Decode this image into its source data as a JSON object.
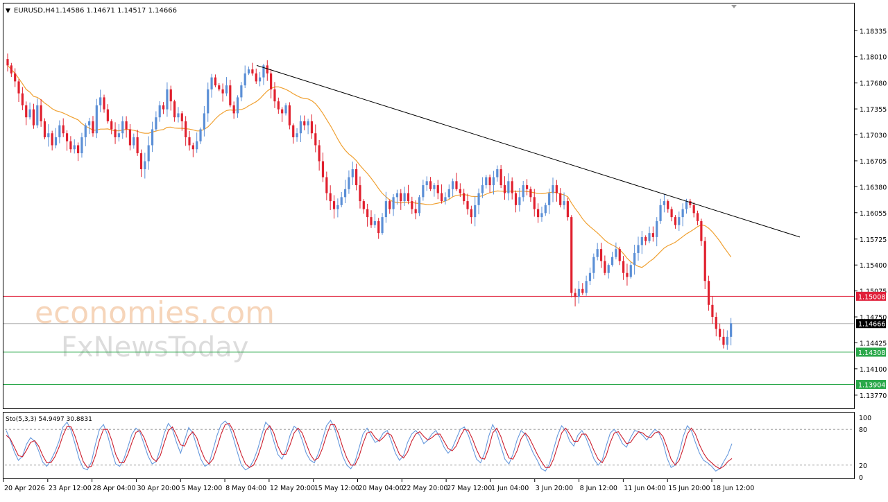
{
  "header": {
    "symbol_label": "EURUSD,H4",
    "ohlc_label": "1.14586 1.14671 1.14517 1.14666"
  },
  "watermarks": {
    "line1": "economies.com",
    "line2": "FxNewsToday"
  },
  "colors": {
    "bull": "#5b8fd6",
    "bear": "#e0202e",
    "ma": "#f0a030",
    "trendline": "#000000",
    "resistance": "#e0203a",
    "support": "#2aa84a",
    "current_price": "#b0b0b0",
    "stoch_main": "#6699dd",
    "stoch_signal": "#cc1f2e"
  },
  "chart_data": [
    {
      "type": "candlestick",
      "symbol": "EURUSD",
      "timeframe": "H4",
      "y_axis_ticks": [
        "1.18335",
        "1.18010",
        "1.17680",
        "1.17355",
        "1.17030",
        "1.16705",
        "1.16380",
        "1.16055",
        "1.15725",
        "1.15400",
        "1.15075",
        "1.14750",
        "1.14425",
        "1.14100",
        "1.13770"
      ],
      "ylim": [
        1.1363,
        1.1865
      ],
      "x_axis_labels": [
        "20 Apr 2026",
        "23 Apr 12:00",
        "28 Apr 04:00",
        "30 Apr 20:00",
        "5 May 12:00",
        "8 May 04:00",
        "12 May 20:00",
        "15 May 12:00",
        "20 May 04:00",
        "22 May 20:00",
        "27 May 12:00",
        "1 Jun 04:00",
        "3 Jun 20:00",
        "8 Jun 12:00",
        "11 Jun 04:00",
        "15 Jun 20:00",
        "18 Jun 12:00"
      ],
      "close_series": [
        1.179,
        1.178,
        1.177,
        1.1755,
        1.174,
        1.1725,
        1.1735,
        1.1715,
        1.174,
        1.172,
        1.17,
        1.1705,
        1.169,
        1.17,
        1.1715,
        1.1705,
        1.1695,
        1.1685,
        1.169,
        1.168,
        1.17,
        1.1715,
        1.172,
        1.1705,
        1.174,
        1.175,
        1.1735,
        1.172,
        1.171,
        1.17,
        1.1705,
        1.172,
        1.171,
        1.169,
        1.17,
        1.168,
        1.166,
        1.167,
        1.169,
        1.171,
        1.1725,
        1.174,
        1.1735,
        1.176,
        1.1745,
        1.1725,
        1.173,
        1.172,
        1.17,
        1.169,
        1.1685,
        1.1695,
        1.171,
        1.173,
        1.176,
        1.1775,
        1.1765,
        1.176,
        1.1755,
        1.1765,
        1.174,
        1.173,
        1.175,
        1.1765,
        1.178,
        1.1785,
        1.178,
        1.177,
        1.1775,
        1.179,
        1.178,
        1.176,
        1.1745,
        1.1735,
        1.173,
        1.174,
        1.1715,
        1.17,
        1.1705,
        1.172,
        1.1715,
        1.172,
        1.1705,
        1.169,
        1.167,
        1.165,
        1.163,
        1.162,
        1.161,
        1.1615,
        1.1625,
        1.1635,
        1.165,
        1.166,
        1.164,
        1.162,
        1.161,
        1.16,
        1.159,
        1.1595,
        1.158,
        1.16,
        1.162,
        1.161,
        1.1625,
        1.163,
        1.162,
        1.163,
        1.162,
        1.161,
        1.1605,
        1.1625,
        1.164,
        1.1645,
        1.1635,
        1.164,
        1.163,
        1.162,
        1.1625,
        1.1635,
        1.1645,
        1.1635,
        1.163,
        1.162,
        1.161,
        1.16,
        1.1615,
        1.163,
        1.164,
        1.165,
        1.164,
        1.165,
        1.166,
        1.164,
        1.163,
        1.1645,
        1.163,
        1.1615,
        1.1625,
        1.164,
        1.1635,
        1.1625,
        1.161,
        1.16,
        1.1605,
        1.1615,
        1.163,
        1.164,
        1.163,
        1.1615,
        1.162,
        1.16,
        1.1505,
        1.15,
        1.151,
        1.1505,
        1.152,
        1.153,
        1.155,
        1.156,
        1.1545,
        1.153,
        1.154,
        1.155,
        1.156,
        1.1545,
        1.153,
        1.1525,
        1.154,
        1.1555,
        1.1565,
        1.1575,
        1.157,
        1.158,
        1.1575,
        1.1595,
        1.1615,
        1.162,
        1.161,
        1.16,
        1.159,
        1.16,
        1.161,
        1.162,
        1.1615,
        1.1605,
        1.1595,
        1.157,
        1.152,
        1.149,
        1.1475,
        1.146,
        1.145,
        1.144,
        1.145,
        1.1467
      ],
      "moving_average": {
        "from": 1.176,
        "to": 1.156
      },
      "trendline": {
        "start": {
          "label": "8 May 04:00",
          "value": 1.179
        },
        "end_value": 1.1575
      },
      "horizontal_levels": [
        {
          "label": "1.15008",
          "value": 1.15008,
          "color": "resistance"
        },
        {
          "label": "1.14666",
          "value": 1.14666,
          "color": "current_price"
        },
        {
          "label": "1.14308",
          "value": 1.14308,
          "color": "support"
        },
        {
          "label": "1.13904",
          "value": 1.13904,
          "color": "support"
        }
      ],
      "grid": false
    },
    {
      "type": "line",
      "label": "Sto(5,3,3) 54.9497 30.8831",
      "y_axis_ticks": [
        "100",
        "80",
        "20",
        "0"
      ],
      "ylim": [
        0,
        100
      ],
      "levels": [
        80,
        20
      ],
      "series": [
        {
          "values": [
            78,
            62,
            42,
            28,
            35,
            55,
            66,
            60,
            44,
            25,
            18,
            28,
            42,
            60,
            84,
            92,
            78,
            55,
            30,
            15,
            12,
            25,
            55,
            80,
            88,
            70,
            45,
            22,
            18,
            30,
            50,
            72,
            82,
            75,
            55,
            35,
            22,
            26,
            48,
            74,
            90,
            80,
            58,
            40,
            62,
            83,
            74,
            52,
            30,
            18,
            22,
            45,
            70,
            88,
            94,
            86,
            66,
            42,
            20,
            12,
            16,
            28,
            46,
            70,
            92,
            84,
            60,
            38,
            30,
            45,
            70,
            85,
            80,
            62,
            40,
            28,
            24,
            40,
            62,
            86,
            95,
            82,
            58,
            35,
            20,
            14,
            25,
            48,
            72,
            82,
            70,
            58,
            62,
            74,
            78,
            60,
            40,
            28,
            36,
            58,
            72,
            78,
            70,
            56,
            62,
            72,
            78,
            66,
            50,
            40,
            48,
            64,
            80,
            84,
            70,
            50,
            30,
            24,
            40,
            68,
            88,
            74,
            52,
            30,
            22,
            38,
            62,
            78,
            72,
            56,
            40,
            28,
            14,
            10,
            22,
            46,
            70,
            86,
            78,
            60,
            52,
            70,
            78,
            66,
            48,
            30,
            20,
            28,
            52,
            74,
            80,
            70,
            56,
            50,
            66,
            78,
            76,
            70,
            62,
            72,
            80,
            74,
            58,
            32,
            16,
            20,
            40,
            68,
            86,
            78,
            58,
            40,
            28,
            24,
            18,
            10,
            14,
            26,
            38,
            56
          ]
        },
        {
          "values": [
            70,
            64,
            50,
            36,
            34,
            45,
            58,
            61,
            52,
            36,
            24,
            24,
            34,
            50,
            70,
            85,
            84,
            68,
            46,
            26,
            16,
            18,
            36,
            62,
            80,
            80,
            62,
            38,
            24,
            24,
            38,
            58,
            75,
            78,
            66,
            48,
            32,
            26,
            36,
            58,
            78,
            84,
            70,
            54,
            52,
            68,
            76,
            66,
            46,
            30,
            22,
            30,
            50,
            72,
            88,
            90,
            78,
            58,
            38,
            22,
            16,
            20,
            34,
            54,
            78,
            86,
            74,
            52,
            38,
            38,
            54,
            74,
            82,
            74,
            56,
            38,
            28,
            32,
            48,
            70,
            88,
            88,
            72,
            50,
            32,
            20,
            20,
            34,
            56,
            74,
            76,
            66,
            60,
            66,
            74,
            70,
            54,
            38,
            32,
            42,
            60,
            72,
            76,
            68,
            62,
            66,
            72,
            72,
            60,
            48,
            44,
            52,
            68,
            80,
            78,
            64,
            46,
            32,
            30,
            48,
            74,
            82,
            68,
            48,
            32,
            30,
            44,
            64,
            74,
            66,
            52,
            38,
            26,
            16,
            16,
            30,
            52,
            74,
            82,
            72,
            60,
            60,
            72,
            72,
            60,
            44,
            30,
            24,
            36,
            58,
            74,
            76,
            66,
            56,
            58,
            68,
            76,
            74,
            68,
            66,
            74,
            76,
            68,
            50,
            30,
            20,
            28,
            48,
            72,
            82,
            72,
            54,
            40,
            30,
            24,
            18,
            14,
            18,
            26,
            31
          ]
        }
      ]
    }
  ]
}
